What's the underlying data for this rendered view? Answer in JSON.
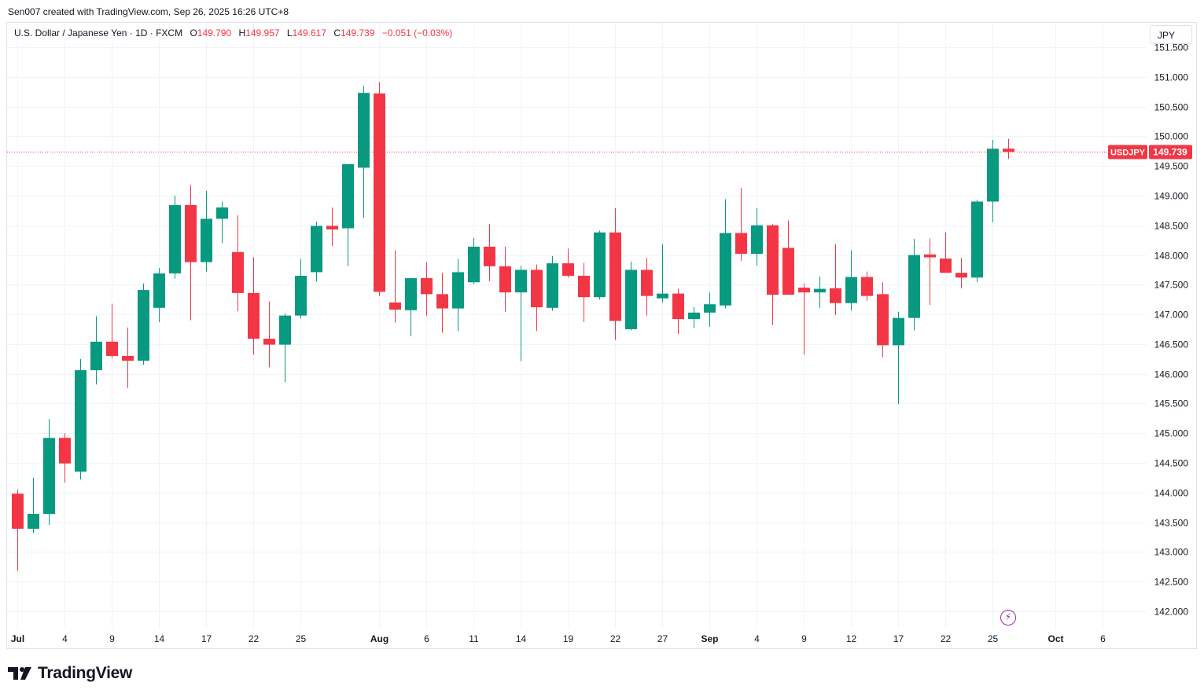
{
  "credit": "Sen007 created with TradingView.com, Sep 26, 2025 16:26 UTC+8",
  "legend": {
    "symbol": "U.S. Dollar / Japanese Yen · 1D · FXCM",
    "o_label": "O",
    "o": "149.790",
    "h_label": "H",
    "h": "149.957",
    "l_label": "L",
    "l": "149.617",
    "c_label": "C",
    "c": "149.739",
    "change": "−0.051 (−0.03%)"
  },
  "currency_button": "JPY",
  "brand": "TradingView",
  "colors": {
    "up": "#089981",
    "down": "#f23645",
    "grid": "#f0f3fa",
    "text": "#131722",
    "accent_icon": "#9c27b0"
  },
  "chart_data": {
    "type": "candlestick",
    "symbol": "USDJPY",
    "last_price_label": "149.739",
    "last_price": 149.739,
    "ylim": [
      141.88,
      151.5
    ],
    "y_ticks": [
      "142.000",
      "142.500",
      "143.000",
      "143.500",
      "144.000",
      "144.500",
      "145.000",
      "145.500",
      "146.000",
      "146.500",
      "147.000",
      "147.500",
      "148.000",
      "148.500",
      "149.000",
      "149.500",
      "150.000",
      "150.500",
      "151.000",
      "151.500"
    ],
    "x_ticks": [
      {
        "i": 0,
        "label": "Jul"
      },
      {
        "i": 3,
        "label": "4"
      },
      {
        "i": 6,
        "label": "9"
      },
      {
        "i": 9,
        "label": "14"
      },
      {
        "i": 12,
        "label": "17"
      },
      {
        "i": 15,
        "label": "22"
      },
      {
        "i": 18,
        "label": "25"
      },
      {
        "i": 23,
        "label": "Aug"
      },
      {
        "i": 26,
        "label": "6"
      },
      {
        "i": 29,
        "label": "11"
      },
      {
        "i": 32,
        "label": "14"
      },
      {
        "i": 35,
        "label": "19"
      },
      {
        "i": 38,
        "label": "22"
      },
      {
        "i": 41,
        "label": "27"
      },
      {
        "i": 44,
        "label": "Sep"
      },
      {
        "i": 47,
        "label": "4"
      },
      {
        "i": 50,
        "label": "9"
      },
      {
        "i": 53,
        "label": "12"
      },
      {
        "i": 56,
        "label": "17"
      },
      {
        "i": 59,
        "label": "22"
      },
      {
        "i": 62,
        "label": "25"
      },
      {
        "i": 66,
        "label": "Oct"
      },
      {
        "i": 69,
        "label": "6"
      }
    ],
    "candles": [
      {
        "o": 143.98,
        "h": 144.05,
        "l": 142.68,
        "c": 143.39
      },
      {
        "o": 143.39,
        "h": 144.25,
        "l": 143.32,
        "c": 143.64
      },
      {
        "o": 143.64,
        "h": 145.24,
        "l": 143.45,
        "c": 144.92
      },
      {
        "o": 144.92,
        "h": 145.0,
        "l": 144.17,
        "c": 144.49
      },
      {
        "o": 144.35,
        "h": 146.25,
        "l": 144.22,
        "c": 146.06
      },
      {
        "o": 146.06,
        "h": 146.97,
        "l": 145.82,
        "c": 146.54
      },
      {
        "o": 146.54,
        "h": 147.18,
        "l": 146.26,
        "c": 146.3
      },
      {
        "o": 146.3,
        "h": 146.78,
        "l": 145.76,
        "c": 146.22
      },
      {
        "o": 146.22,
        "h": 147.52,
        "l": 146.15,
        "c": 147.41
      },
      {
        "o": 147.11,
        "h": 147.78,
        "l": 146.87,
        "c": 147.69
      },
      {
        "o": 147.69,
        "h": 149.0,
        "l": 147.6,
        "c": 148.84
      },
      {
        "o": 148.84,
        "h": 149.18,
        "l": 146.9,
        "c": 147.88
      },
      {
        "o": 147.88,
        "h": 149.08,
        "l": 147.72,
        "c": 148.61
      },
      {
        "o": 148.61,
        "h": 148.9,
        "l": 148.2,
        "c": 148.8
      },
      {
        "o": 148.05,
        "h": 148.67,
        "l": 147.05,
        "c": 147.36
      },
      {
        "o": 147.36,
        "h": 147.96,
        "l": 146.32,
        "c": 146.59
      },
      {
        "o": 146.59,
        "h": 147.22,
        "l": 146.11,
        "c": 146.49
      },
      {
        "o": 146.49,
        "h": 147.02,
        "l": 145.86,
        "c": 146.98
      },
      {
        "o": 146.98,
        "h": 147.93,
        "l": 146.93,
        "c": 147.65
      },
      {
        "o": 147.71,
        "h": 148.56,
        "l": 147.55,
        "c": 148.49
      },
      {
        "o": 148.49,
        "h": 148.8,
        "l": 148.15,
        "c": 148.43
      },
      {
        "o": 148.45,
        "h": 149.53,
        "l": 147.81,
        "c": 149.53
      },
      {
        "o": 149.47,
        "h": 150.85,
        "l": 148.62,
        "c": 150.73
      },
      {
        "o": 150.72,
        "h": 150.91,
        "l": 147.31,
        "c": 147.38
      },
      {
        "o": 147.2,
        "h": 148.08,
        "l": 146.86,
        "c": 147.08
      },
      {
        "o": 147.07,
        "h": 147.6,
        "l": 146.63,
        "c": 147.61
      },
      {
        "o": 147.61,
        "h": 147.88,
        "l": 146.98,
        "c": 147.34
      },
      {
        "o": 147.34,
        "h": 147.7,
        "l": 146.69,
        "c": 147.1
      },
      {
        "o": 147.1,
        "h": 147.93,
        "l": 146.72,
        "c": 147.71
      },
      {
        "o": 147.54,
        "h": 148.29,
        "l": 147.51,
        "c": 148.14
      },
      {
        "o": 148.14,
        "h": 148.52,
        "l": 147.56,
        "c": 147.81
      },
      {
        "o": 147.81,
        "h": 148.14,
        "l": 147.04,
        "c": 147.37
      },
      {
        "o": 147.37,
        "h": 147.82,
        "l": 146.21,
        "c": 147.75
      },
      {
        "o": 147.75,
        "h": 147.84,
        "l": 146.72,
        "c": 147.12
      },
      {
        "o": 147.11,
        "h": 147.98,
        "l": 147.06,
        "c": 147.86
      },
      {
        "o": 147.86,
        "h": 148.11,
        "l": 147.62,
        "c": 147.65
      },
      {
        "o": 147.65,
        "h": 147.87,
        "l": 146.87,
        "c": 147.29
      },
      {
        "o": 147.29,
        "h": 148.41,
        "l": 147.25,
        "c": 148.38
      },
      {
        "o": 148.38,
        "h": 148.79,
        "l": 146.57,
        "c": 146.89
      },
      {
        "o": 146.75,
        "h": 147.89,
        "l": 146.73,
        "c": 147.75
      },
      {
        "o": 147.75,
        "h": 147.95,
        "l": 146.98,
        "c": 147.31
      },
      {
        "o": 147.27,
        "h": 148.18,
        "l": 147.2,
        "c": 147.35
      },
      {
        "o": 147.35,
        "h": 147.43,
        "l": 146.67,
        "c": 146.92
      },
      {
        "o": 146.92,
        "h": 147.12,
        "l": 146.77,
        "c": 147.03
      },
      {
        "o": 147.03,
        "h": 147.37,
        "l": 146.79,
        "c": 147.17
      },
      {
        "o": 147.15,
        "h": 148.94,
        "l": 147.1,
        "c": 148.37
      },
      {
        "o": 148.37,
        "h": 149.13,
        "l": 147.9,
        "c": 148.02
      },
      {
        "o": 148.02,
        "h": 148.79,
        "l": 147.82,
        "c": 148.5
      },
      {
        "o": 148.5,
        "h": 148.52,
        "l": 146.82,
        "c": 147.33
      },
      {
        "o": 148.12,
        "h": 148.58,
        "l": 147.35,
        "c": 147.33
      },
      {
        "o": 147.45,
        "h": 147.52,
        "l": 146.32,
        "c": 147.37
      },
      {
        "o": 147.37,
        "h": 147.64,
        "l": 147.11,
        "c": 147.43
      },
      {
        "o": 147.44,
        "h": 148.18,
        "l": 146.99,
        "c": 147.19
      },
      {
        "o": 147.19,
        "h": 148.08,
        "l": 147.06,
        "c": 147.63
      },
      {
        "o": 147.63,
        "h": 147.72,
        "l": 147.23,
        "c": 147.31
      },
      {
        "o": 147.34,
        "h": 147.54,
        "l": 146.28,
        "c": 146.48
      },
      {
        "o": 146.48,
        "h": 147.04,
        "l": 145.49,
        "c": 146.94
      },
      {
        "o": 146.94,
        "h": 148.27,
        "l": 146.73,
        "c": 148.0
      },
      {
        "o": 148.01,
        "h": 148.28,
        "l": 147.16,
        "c": 147.96
      },
      {
        "o": 147.94,
        "h": 148.38,
        "l": 147.7,
        "c": 147.7
      },
      {
        "o": 147.7,
        "h": 147.95,
        "l": 147.44,
        "c": 147.62
      },
      {
        "o": 147.62,
        "h": 148.93,
        "l": 147.54,
        "c": 148.9
      },
      {
        "o": 148.9,
        "h": 149.94,
        "l": 148.55,
        "c": 149.79
      },
      {
        "o": 149.79,
        "h": 149.957,
        "l": 149.617,
        "c": 149.739
      }
    ]
  }
}
